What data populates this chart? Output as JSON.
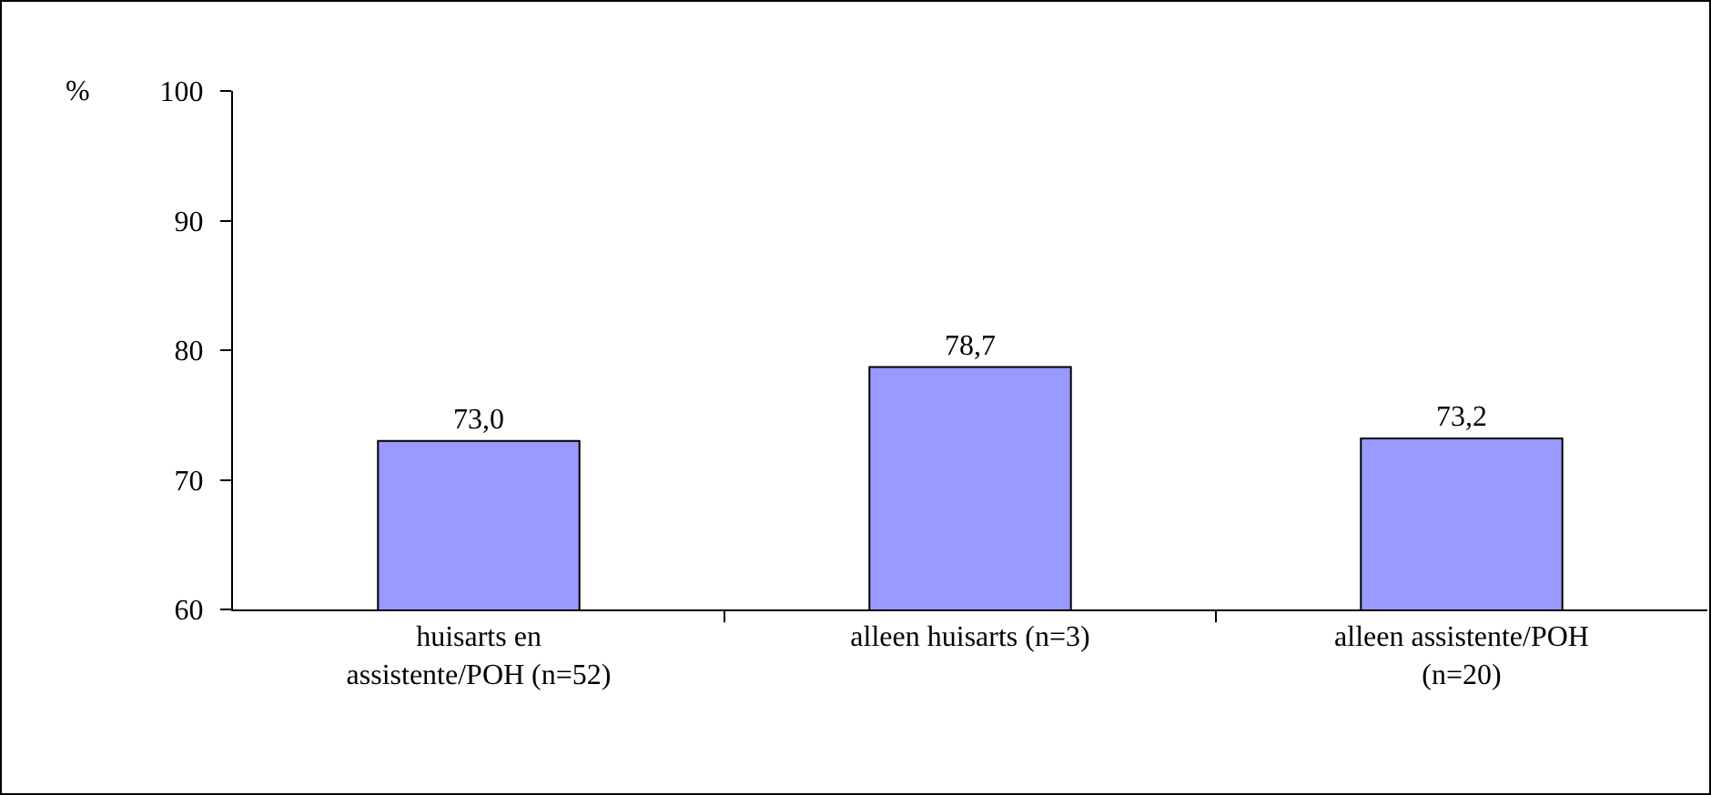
{
  "chart_data": {
    "type": "bar",
    "ylabel": "%",
    "categories": [
      "huisarts en assistente/POH (n=52)",
      "alleen huisarts (n=3)",
      "alleen assistente/POH (n=20)"
    ],
    "values": [
      73.0,
      78.7,
      73.2
    ],
    "value_labels": [
      "73,0",
      "78,7",
      "73,2"
    ],
    "color": "#9999ff",
    "ylim": [
      60,
      100
    ],
    "yticks": [
      60,
      70,
      80,
      90,
      100
    ],
    "grid": false
  }
}
